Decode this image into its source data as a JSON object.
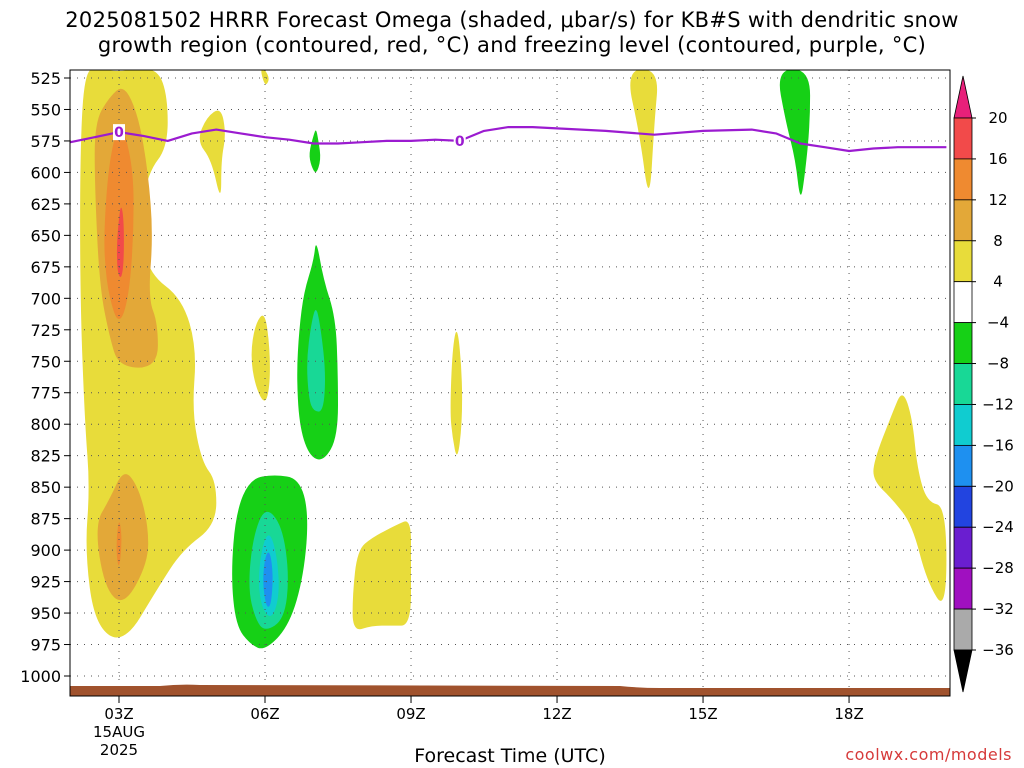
{
  "title_line1": "2025081502 HRRR Forecast Omega (shaded, μbar/s) for KB#S with dendritic snow",
  "title_line2": "growth region (contoured, red, °C) and freezing level (contoured, purple, °C)",
  "xlabel": "Forecast Time (UTC)",
  "credit": "coolwx.com/models",
  "colors": {
    "background": "#ffffff",
    "grid": "#555555",
    "terrain": "#a0522d",
    "freezing_level": "#9b1bd0",
    "dgz_label": "#9b1bd0"
  },
  "chart_data": {
    "type": "heatmap",
    "title": "2025081502 HRRR Forecast Omega (shaded, μbar/s) for KB#S with dendritic snow growth region (contoured, red, °C) and freezing level (contoured, purple, °C)",
    "xlabel": "Forecast Time (UTC)",
    "ylabel": "",
    "x_range_hours": [
      2,
      20
    ],
    "y_range_mb": [
      1000,
      525
    ],
    "y_ticks": [
      525,
      550,
      575,
      600,
      625,
      650,
      675,
      700,
      725,
      750,
      775,
      800,
      825,
      850,
      875,
      900,
      925,
      950,
      975,
      1000
    ],
    "x_ticks": [
      {
        "hour": 3,
        "label": "03Z",
        "sub": [
          "15AUG",
          "2025"
        ]
      },
      {
        "hour": 6,
        "label": "06Z",
        "sub": []
      },
      {
        "hour": 9,
        "label": "09Z",
        "sub": []
      },
      {
        "hour": 12,
        "label": "12Z",
        "sub": []
      },
      {
        "hour": 15,
        "label": "15Z",
        "sub": []
      },
      {
        "hour": 18,
        "label": "18Z",
        "sub": []
      }
    ],
    "grid": true,
    "colorbar": {
      "bins": [
        {
          "lo": 20,
          "hi": 24,
          "color": "#e8207a"
        },
        {
          "lo": 16,
          "hi": 20,
          "color": "#f24a4a"
        },
        {
          "lo": 12,
          "hi": 16,
          "color": "#ef8a30"
        },
        {
          "lo": 8,
          "hi": 12,
          "color": "#e3a838"
        },
        {
          "lo": 4,
          "hi": 8,
          "color": "#e8dc3a"
        },
        {
          "lo": -4,
          "hi": 4,
          "color": "#ffffff"
        },
        {
          "lo": -8,
          "hi": -4,
          "color": "#16d016"
        },
        {
          "lo": -12,
          "hi": -8,
          "color": "#18d896"
        },
        {
          "lo": -16,
          "hi": -12,
          "color": "#10ccd0"
        },
        {
          "lo": -20,
          "hi": -16,
          "color": "#1e90f0"
        },
        {
          "lo": -24,
          "hi": -20,
          "color": "#2244e0"
        },
        {
          "lo": -28,
          "hi": -24,
          "color": "#6a1ed0"
        },
        {
          "lo": -32,
          "hi": -28,
          "color": "#a010c0"
        },
        {
          "lo": -36,
          "hi": -32,
          "color": "#aaaaaa"
        },
        {
          "lo": -40,
          "hi": -36,
          "color": "#000000"
        }
      ],
      "tick_labels": [
        "20",
        "16",
        "12",
        "8",
        "4",
        "−4",
        "−8",
        "−12",
        "−16",
        "−20",
        "−24",
        "−28",
        "−32",
        "−36"
      ]
    },
    "freezing_level_0C": {
      "label": "0",
      "points": [
        [
          2.0,
          576
        ],
        [
          2.5,
          572
        ],
        [
          3.0,
          568
        ],
        [
          3.5,
          571
        ],
        [
          4.0,
          575
        ],
        [
          4.5,
          569
        ],
        [
          5.0,
          566
        ],
        [
          5.5,
          569
        ],
        [
          6.0,
          572
        ],
        [
          6.5,
          574
        ],
        [
          7.0,
          577
        ],
        [
          7.5,
          577
        ],
        [
          8.0,
          576
        ],
        [
          8.5,
          575
        ],
        [
          9.0,
          575
        ],
        [
          9.5,
          574
        ],
        [
          10.0,
          575
        ],
        [
          10.5,
          567
        ],
        [
          11.0,
          564
        ],
        [
          11.5,
          564
        ],
        [
          12.0,
          565
        ],
        [
          13.0,
          567
        ],
        [
          14.0,
          570
        ],
        [
          15.0,
          567
        ],
        [
          16.0,
          566
        ],
        [
          16.5,
          569
        ],
        [
          17.0,
          577
        ],
        [
          17.5,
          580
        ],
        [
          18.0,
          583
        ],
        [
          18.5,
          581
        ],
        [
          19.0,
          580
        ],
        [
          20.0,
          580
        ]
      ],
      "label_positions": [
        [
          3.0,
          568
        ],
        [
          10.0,
          575
        ]
      ]
    },
    "omega_regions": [
      {
        "level": 4,
        "points": [
          [
            2.3,
            518
          ],
          [
            2.6,
            518
          ],
          [
            3.0,
            520
          ],
          [
            3.3,
            518
          ],
          [
            3.8,
            518
          ],
          [
            4.0,
            540
          ],
          [
            4.0,
            580
          ],
          [
            3.6,
            600
          ],
          [
            3.4,
            640
          ],
          [
            3.6,
            680
          ],
          [
            4.3,
            700
          ],
          [
            4.6,
            740
          ],
          [
            4.5,
            790
          ],
          [
            4.7,
            830
          ],
          [
            5.0,
            845
          ],
          [
            5.0,
            880
          ],
          [
            4.3,
            900
          ],
          [
            3.8,
            930
          ],
          [
            3.1,
            975
          ],
          [
            2.5,
            960
          ],
          [
            2.3,
            900
          ],
          [
            2.4,
            850
          ],
          [
            2.3,
            800
          ],
          [
            2.2,
            700
          ],
          [
            2.2,
            580
          ]
        ]
      },
      {
        "level": 8,
        "points": [
          [
            2.5,
            610
          ],
          [
            2.5,
            560
          ],
          [
            2.8,
            540
          ],
          [
            3.1,
            530
          ],
          [
            3.4,
            555
          ],
          [
            3.6,
            600
          ],
          [
            3.7,
            650
          ],
          [
            3.6,
            700
          ],
          [
            3.8,
            720
          ],
          [
            3.8,
            755
          ],
          [
            3.0,
            755
          ],
          [
            2.8,
            730
          ],
          [
            2.6,
            690
          ]
        ]
      },
      {
        "level": 12,
        "points": [
          [
            2.7,
            640
          ],
          [
            2.8,
            590
          ],
          [
            3.0,
            560
          ],
          [
            3.1,
            565
          ],
          [
            3.3,
            600
          ],
          [
            3.3,
            650
          ],
          [
            3.2,
            700
          ],
          [
            3.0,
            722
          ],
          [
            2.8,
            700
          ],
          [
            2.7,
            670
          ]
        ]
      },
      {
        "level": 16,
        "points": [
          [
            2.95,
            660
          ],
          [
            3.0,
            635
          ],
          [
            3.05,
            625
          ],
          [
            3.1,
            640
          ],
          [
            3.1,
            670
          ],
          [
            3.05,
            685
          ],
          [
            2.97,
            680
          ]
        ]
      },
      {
        "level": 8,
        "points": [
          [
            2.5,
            880
          ],
          [
            2.8,
            860
          ],
          [
            3.1,
            835
          ],
          [
            3.4,
            850
          ],
          [
            3.6,
            880
          ],
          [
            3.6,
            910
          ],
          [
            3.1,
            945
          ],
          [
            2.7,
            930
          ]
        ]
      },
      {
        "level": 12,
        "points": [
          [
            2.95,
            890
          ],
          [
            3.0,
            875
          ],
          [
            3.05,
            885
          ],
          [
            3.05,
            900
          ],
          [
            3.0,
            915
          ],
          [
            2.95,
            905
          ]
        ]
      },
      {
        "level": 4,
        "points": [
          [
            4.6,
            575
          ],
          [
            4.8,
            556
          ],
          [
            5.1,
            548
          ],
          [
            5.2,
            570
          ],
          [
            5.1,
            590
          ],
          [
            5.1,
            625
          ],
          [
            4.9,
            590
          ]
        ]
      },
      {
        "level": 4,
        "points": [
          [
            5.7,
            745
          ],
          [
            5.8,
            720
          ],
          [
            6.0,
            710
          ],
          [
            6.1,
            740
          ],
          [
            6.1,
            770
          ],
          [
            6.0,
            785
          ],
          [
            5.8,
            770
          ]
        ]
      },
      {
        "level": 4,
        "points": [
          [
            5.9,
            518
          ],
          [
            6.0,
            518
          ],
          [
            6.1,
            526
          ],
          [
            6.0,
            532
          ]
        ]
      },
      {
        "level": 4,
        "points": [
          [
            9.8,
            790
          ],
          [
            9.85,
            740
          ],
          [
            9.95,
            720
          ],
          [
            10.05,
            760
          ],
          [
            10.05,
            800
          ],
          [
            9.95,
            830
          ],
          [
            9.85,
            810
          ]
        ]
      },
      {
        "level": 4,
        "points": [
          [
            7.8,
            935
          ],
          [
            7.9,
            900
          ],
          [
            8.2,
            890
          ],
          [
            8.7,
            880
          ],
          [
            9.0,
            875
          ],
          [
            9.0,
            910
          ],
          [
            9.0,
            960
          ],
          [
            8.6,
            960
          ],
          [
            8.2,
            960
          ],
          [
            7.8,
            965
          ]
        ]
      },
      {
        "level": 4,
        "points": [
          [
            13.4,
            518
          ],
          [
            14.1,
            518
          ],
          [
            14.0,
            560
          ],
          [
            13.9,
            628
          ],
          [
            13.7,
            570
          ]
        ]
      },
      {
        "level": 4,
        "points": [
          [
            18.5,
            830
          ],
          [
            18.9,
            790
          ],
          [
            19.1,
            772
          ],
          [
            19.3,
            795
          ],
          [
            19.4,
            835
          ],
          [
            19.6,
            862
          ],
          [
            20.0,
            865
          ],
          [
            20.0,
            950
          ],
          [
            19.6,
            925
          ],
          [
            19.3,
            880
          ],
          [
            18.9,
            860
          ],
          [
            18.5,
            845
          ]
        ]
      },
      {
        "level": -4,
        "points": [
          [
            5.4,
            960
          ],
          [
            5.3,
            920
          ],
          [
            5.4,
            870
          ],
          [
            5.7,
            843
          ],
          [
            6.2,
            840
          ],
          [
            6.7,
            843
          ],
          [
            6.9,
            870
          ],
          [
            6.8,
            920
          ],
          [
            6.5,
            960
          ],
          [
            6.0,
            980
          ],
          [
            5.7,
            975
          ]
        ]
      },
      {
        "level": -8,
        "points": [
          [
            5.65,
            930
          ],
          [
            5.75,
            890
          ],
          [
            6.0,
            865
          ],
          [
            6.35,
            880
          ],
          [
            6.5,
            920
          ],
          [
            6.4,
            955
          ],
          [
            6.0,
            965
          ],
          [
            5.8,
            955
          ]
        ]
      },
      {
        "level": -12,
        "points": [
          [
            5.85,
            925
          ],
          [
            5.95,
            895
          ],
          [
            6.1,
            885
          ],
          [
            6.25,
            905
          ],
          [
            6.3,
            935
          ],
          [
            6.15,
            955
          ],
          [
            5.95,
            948
          ]
        ]
      },
      {
        "level": -16,
        "points": [
          [
            5.95,
            925
          ],
          [
            6.0,
            905
          ],
          [
            6.1,
            900
          ],
          [
            6.17,
            920
          ],
          [
            6.12,
            945
          ],
          [
            6.02,
            945
          ]
        ]
      },
      {
        "level": -4,
        "points": [
          [
            6.65,
            760
          ],
          [
            6.7,
            725
          ],
          [
            6.8,
            695
          ],
          [
            7.0,
            670
          ],
          [
            7.05,
            652
          ],
          [
            7.2,
            685
          ],
          [
            7.45,
            715
          ],
          [
            7.5,
            760
          ],
          [
            7.5,
            810
          ],
          [
            7.2,
            830
          ],
          [
            6.9,
            825
          ],
          [
            6.7,
            800
          ]
        ]
      },
      {
        "level": -8,
        "points": [
          [
            6.85,
            750
          ],
          [
            6.95,
            720
          ],
          [
            7.05,
            705
          ],
          [
            7.15,
            725
          ],
          [
            7.25,
            760
          ],
          [
            7.2,
            790
          ],
          [
            7.0,
            790
          ],
          [
            6.9,
            780
          ]
        ]
      },
      {
        "level": -4,
        "points": [
          [
            6.9,
            585
          ],
          [
            7.0,
            570
          ],
          [
            7.05,
            565
          ],
          [
            7.1,
            575
          ],
          [
            7.15,
            590
          ],
          [
            7.05,
            602
          ],
          [
            6.95,
            595
          ]
        ]
      },
      {
        "level": -4,
        "points": [
          [
            16.5,
            518
          ],
          [
            17.2,
            518
          ],
          [
            17.2,
            560
          ],
          [
            17.1,
            600
          ],
          [
            17.0,
            625
          ],
          [
            16.9,
            590
          ],
          [
            16.7,
            560
          ]
        ]
      }
    ]
  }
}
